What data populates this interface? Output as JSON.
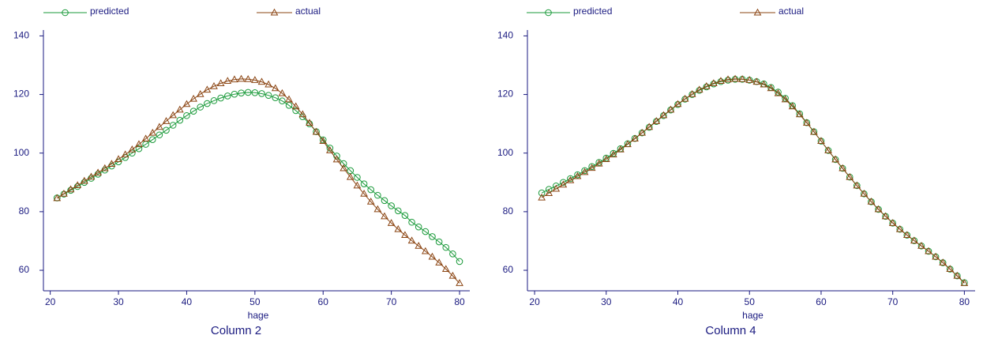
{
  "chart_data": [
    {
      "type": "line",
      "title": "Column 2",
      "x_label": "hage",
      "x": [
        21,
        22,
        23,
        24,
        25,
        26,
        27,
        28,
        29,
        30,
        31,
        32,
        33,
        34,
        35,
        36,
        37,
        38,
        39,
        40,
        41,
        42,
        43,
        44,
        45,
        46,
        47,
        48,
        49,
        50,
        51,
        52,
        53,
        54,
        55,
        56,
        57,
        58,
        59,
        60,
        61,
        62,
        63,
        64,
        65,
        66,
        67,
        68,
        69,
        70,
        71,
        72,
        73,
        74,
        75,
        76,
        77,
        78,
        79,
        80
      ],
      "xlim": [
        19,
        81.5
      ],
      "xticks": [
        20,
        30,
        40,
        50,
        60,
        70,
        80
      ],
      "ylim": [
        53,
        142
      ],
      "yticks": [
        60,
        80,
        100,
        120,
        140
      ],
      "series": [
        {
          "name": "predicted",
          "color": "#1a9a3a",
          "marker": "circle",
          "values": [
            84.7,
            86.0,
            87.3,
            88.6,
            90.0,
            91.4,
            92.8,
            94.2,
            95.6,
            97.0,
            98.5,
            100.0,
            101.5,
            103.0,
            104.6,
            106.2,
            107.8,
            109.5,
            111.2,
            112.8,
            114.3,
            115.7,
            116.9,
            117.9,
            118.8,
            119.5,
            120.1,
            120.5,
            120.7,
            120.6,
            120.3,
            119.7,
            118.9,
            117.8,
            116.3,
            114.5,
            112.4,
            110.0,
            107.3,
            104.5,
            101.7,
            99.0,
            96.4,
            94.0,
            91.7,
            89.5,
            87.5,
            85.6,
            83.8,
            82.0,
            80.3,
            78.7,
            76.4,
            74.8,
            73.2,
            71.5,
            69.7,
            67.8,
            65.6,
            63.0
          ]
        },
        {
          "name": "actual",
          "color": "#8b4513",
          "marker": "triangle",
          "values": [
            84.6,
            86.1,
            87.6,
            89.0,
            90.5,
            91.9,
            93.3,
            94.8,
            96.3,
            97.9,
            99.5,
            101.2,
            103.0,
            104.9,
            106.9,
            108.9,
            110.9,
            112.9,
            114.8,
            116.7,
            118.5,
            120.1,
            121.6,
            122.8,
            123.8,
            124.6,
            125.1,
            125.3,
            125.2,
            124.9,
            124.3,
            123.4,
            122.1,
            120.4,
            118.3,
            115.9,
            113.2,
            110.3,
            107.2,
            104.1,
            100.9,
            97.8,
            94.8,
            91.8,
            88.9,
            86.1,
            83.4,
            80.8,
            78.4,
            76.1,
            74.0,
            72.0,
            70.1,
            68.3,
            66.5,
            64.6,
            62.6,
            60.4,
            58.1,
            55.6
          ]
        }
      ]
    },
    {
      "type": "line",
      "title": "Column 4",
      "x_label": "hage",
      "x": [
        21,
        22,
        23,
        24,
        25,
        26,
        27,
        28,
        29,
        30,
        31,
        32,
        33,
        34,
        35,
        36,
        37,
        38,
        39,
        40,
        41,
        42,
        43,
        44,
        45,
        46,
        47,
        48,
        49,
        50,
        51,
        52,
        53,
        54,
        55,
        56,
        57,
        58,
        59,
        60,
        61,
        62,
        63,
        64,
        65,
        66,
        67,
        68,
        69,
        70,
        71,
        72,
        73,
        74,
        75,
        76,
        77,
        78,
        79,
        80
      ],
      "xlim": [
        19,
        81.5
      ],
      "xticks": [
        20,
        30,
        40,
        50,
        60,
        70,
        80
      ],
      "ylim": [
        53,
        142
      ],
      "yticks": [
        60,
        80,
        100,
        120,
        140
      ],
      "series": [
        {
          "name": "predicted",
          "color": "#1a9a3a",
          "marker": "circle",
          "values": [
            86.4,
            87.6,
            88.8,
            90.0,
            91.3,
            92.6,
            94.0,
            95.4,
            96.8,
            98.3,
            99.9,
            101.5,
            103.2,
            105.0,
            106.9,
            108.8,
            110.8,
            112.8,
            114.7,
            116.6,
            118.4,
            120.0,
            121.4,
            122.6,
            123.6,
            124.4,
            124.9,
            125.2,
            125.2,
            124.9,
            124.4,
            123.6,
            122.4,
            120.8,
            118.7,
            116.2,
            113.4,
            110.4,
            107.3,
            104.1,
            100.9,
            97.8,
            94.8,
            91.8,
            88.9,
            86.1,
            83.4,
            80.8,
            78.4,
            76.1,
            74.0,
            72.0,
            70.1,
            68.3,
            66.5,
            64.6,
            62.6,
            60.4,
            58.1,
            55.8
          ]
        },
        {
          "name": "actual",
          "color": "#8b4513",
          "marker": "triangle",
          "values": [
            84.8,
            86.3,
            87.8,
            89.2,
            90.7,
            92.1,
            93.5,
            94.9,
            96.4,
            97.9,
            99.5,
            101.2,
            103.0,
            104.9,
            106.9,
            108.9,
            110.9,
            112.9,
            114.8,
            116.7,
            118.5,
            120.1,
            121.6,
            122.8,
            123.8,
            124.6,
            125.1,
            125.3,
            125.2,
            124.9,
            124.3,
            123.4,
            122.1,
            120.4,
            118.3,
            115.9,
            113.2,
            110.3,
            107.2,
            104.1,
            100.9,
            97.8,
            94.8,
            91.8,
            88.9,
            86.1,
            83.4,
            80.8,
            78.4,
            76.1,
            74.0,
            72.0,
            70.1,
            68.3,
            66.5,
            64.6,
            62.6,
            60.4,
            58.1,
            55.6
          ]
        }
      ]
    }
  ]
}
